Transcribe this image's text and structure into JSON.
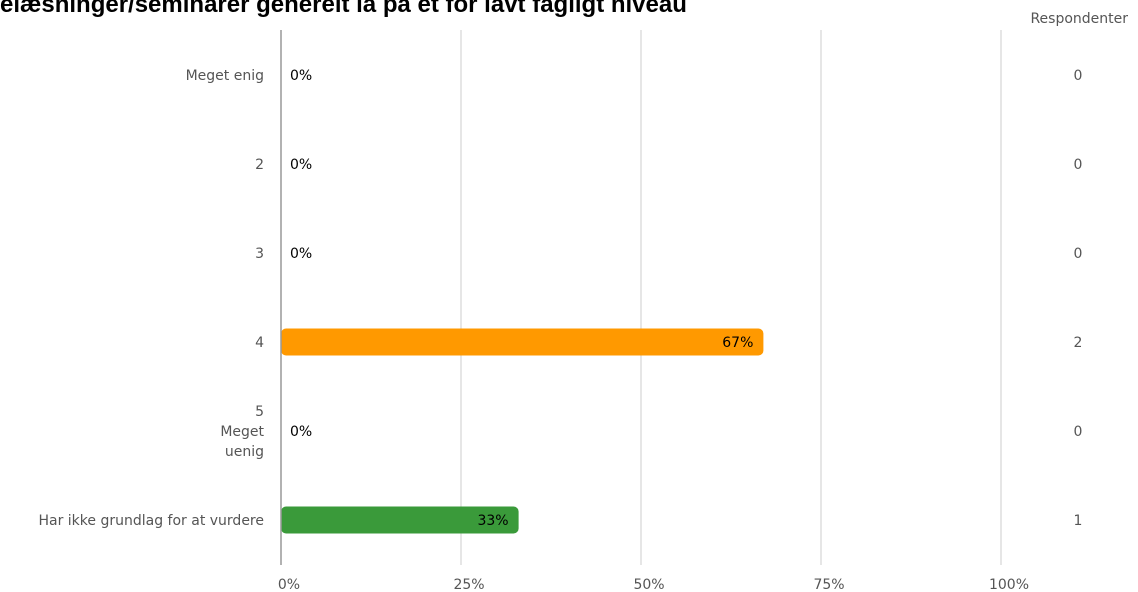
{
  "title": "elæsninger/seminarer generelt lå på et for lavt fagligt niveau",
  "respondents_header": "Respondenter",
  "colors": {
    "bar_orange": "#ff9900",
    "bar_green": "#3a9a3a",
    "grid": "#cccccc",
    "axis": "#999999",
    "label": "#555555"
  },
  "chart_data": {
    "type": "bar",
    "orientation": "horizontal",
    "title": "elæsninger/seminarer generelt lå på et for lavt fagligt niveau",
    "categories": [
      [
        "Meget enig"
      ],
      [
        "2"
      ],
      [
        "3"
      ],
      [
        "4"
      ],
      [
        "5",
        "Meget",
        "uenig"
      ],
      [
        "Har ikke grundlag for at vurdere"
      ]
    ],
    "values": [
      0,
      0,
      0,
      67,
      0,
      33
    ],
    "value_labels": [
      "0%",
      "0%",
      "0%",
      "67%",
      "0%",
      "33%"
    ],
    "bar_colors": [
      "#ff9900",
      "#ff9900",
      "#ff9900",
      "#ff9900",
      "#ff9900",
      "#3a9a3a"
    ],
    "respondents": [
      "0",
      "0",
      "0",
      "2",
      "0",
      "1"
    ],
    "xlim": [
      0,
      100
    ],
    "x_ticks": [
      "0%",
      "25%",
      "50%",
      "75%",
      "100%"
    ],
    "grid": true
  }
}
